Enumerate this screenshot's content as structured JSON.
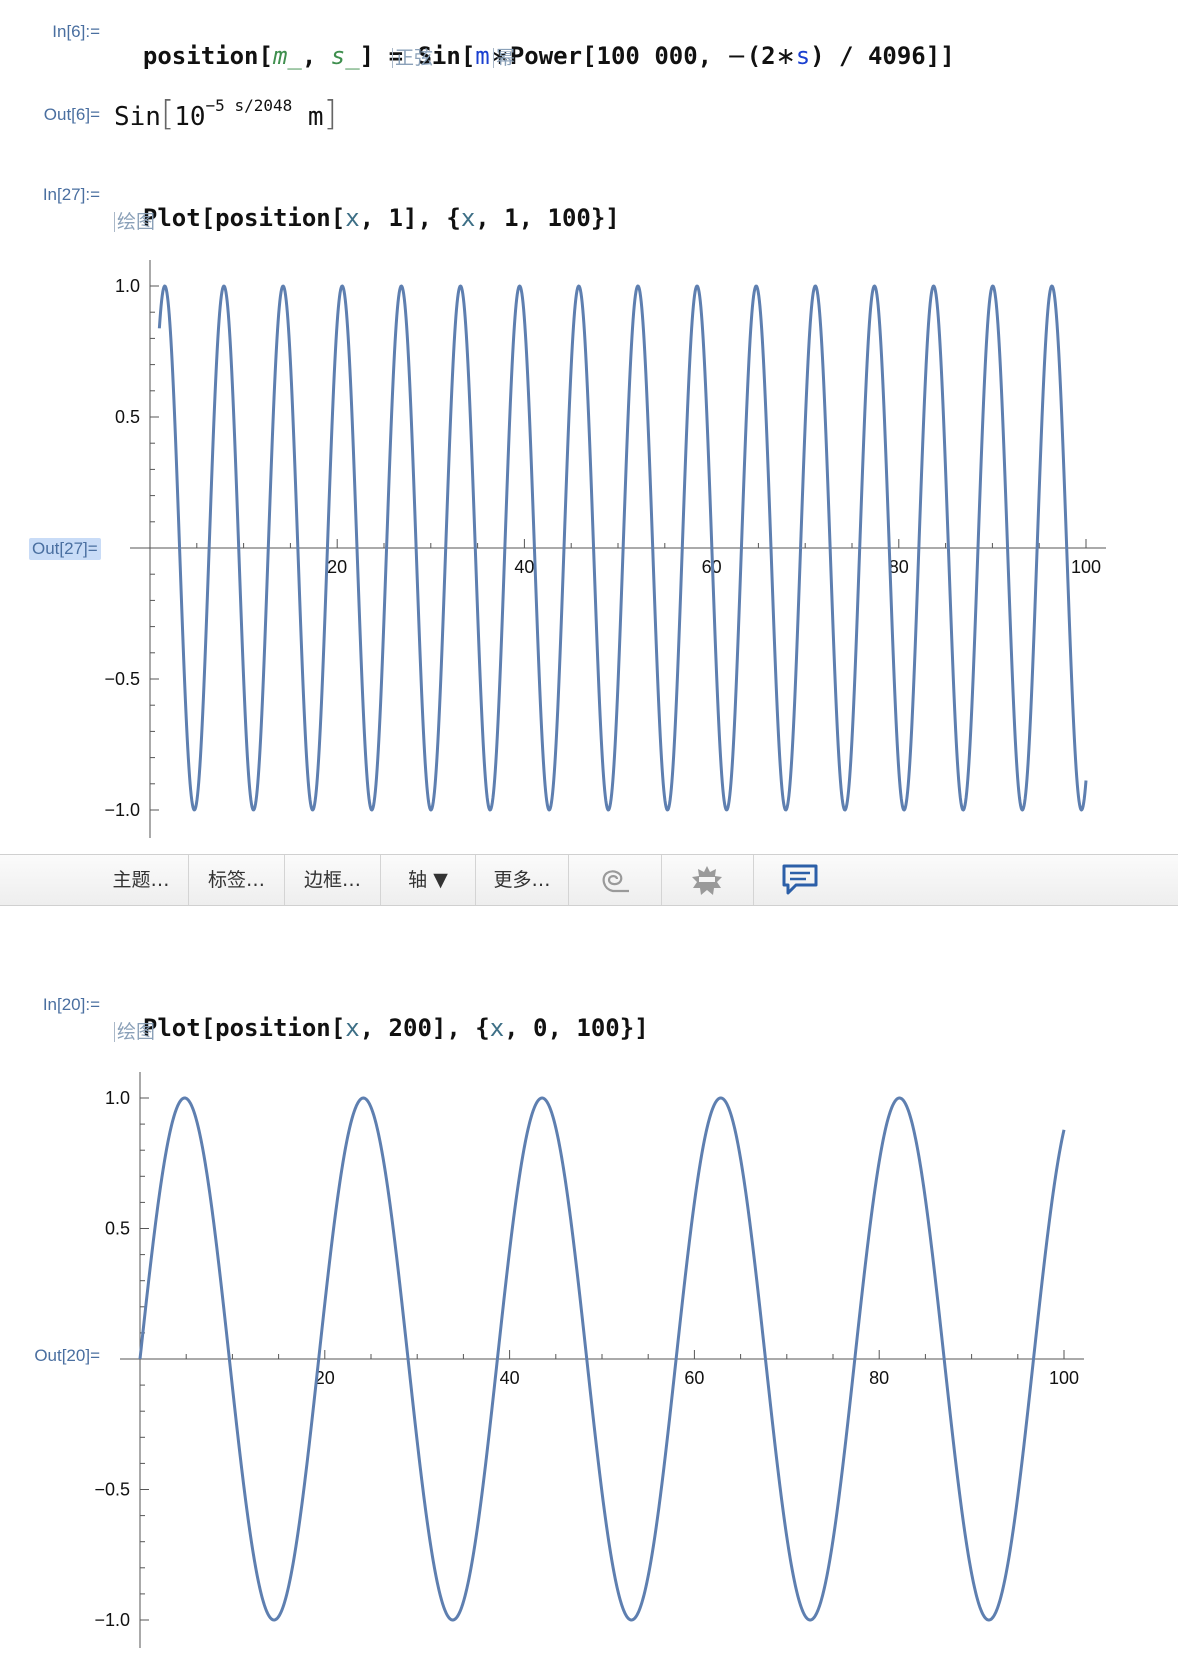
{
  "cells": {
    "in6": {
      "label": "In[6]:=",
      "tokens": [
        "position[",
        "m_",
        ", ",
        "s_",
        "] = Sin[",
        "m",
        "∗",
        "Power[100",
        " ",
        "000, ",
        "−",
        "(2",
        "∗",
        "s",
        ") / 4096]]"
      ],
      "hints": [
        "正弦",
        "幂"
      ]
    },
    "out6": {
      "label": "Out[6]=",
      "sin": "Sin",
      "base": "10",
      "exponent": "−5 s/2048",
      "var": "m"
    },
    "in27": {
      "label": "In[27]:=",
      "tokens": [
        "Plot[position[",
        "x",
        ", 1], {",
        "x",
        ", 1, 100}]"
      ],
      "hint": "绘图"
    },
    "out27": {
      "label": "Out[27]="
    },
    "in20": {
      "label": "In[20]:=",
      "tokens": [
        "Plot[position[",
        "x",
        ", 200], {",
        "x",
        ", 0, 100}]"
      ],
      "hint": "绘图"
    },
    "out20": {
      "label": "Out[20]="
    }
  },
  "toolbar": {
    "items": [
      "主题…",
      "标签…",
      "边框…",
      "轴 ▼",
      "更多…"
    ],
    "icons": [
      "spiral-icon",
      "gear-star-icon",
      "comment-icon"
    ]
  },
  "colors": {
    "curve": "#5e7fb0",
    "label": "#4a6fa0",
    "selection": "#c9dcf7"
  },
  "chart_data": [
    {
      "type": "line",
      "function": "sin(x * 100000^(-2*1/4096))",
      "x_range": [
        1,
        100
      ],
      "ylim": [
        -1.0,
        1.0
      ],
      "x_ticks": [
        "20",
        "40",
        "60",
        "80",
        "100"
      ],
      "y_ticks": [
        "1.0",
        "0.5",
        "−0.5",
        "−1.0"
      ],
      "s": 1,
      "title": "",
      "xlabel": "",
      "ylabel": ""
    },
    {
      "type": "line",
      "function": "sin(x * 100000^(-2*200/4096))",
      "x_range": [
        0,
        100
      ],
      "ylim": [
        -1.0,
        1.0
      ],
      "x_ticks": [
        "20",
        "40",
        "60",
        "80",
        "100"
      ],
      "y_ticks": [
        "1.0",
        "0.5",
        "−0.5",
        "−1.0"
      ],
      "s": 200,
      "title": "",
      "xlabel": "",
      "ylabel": ""
    }
  ]
}
